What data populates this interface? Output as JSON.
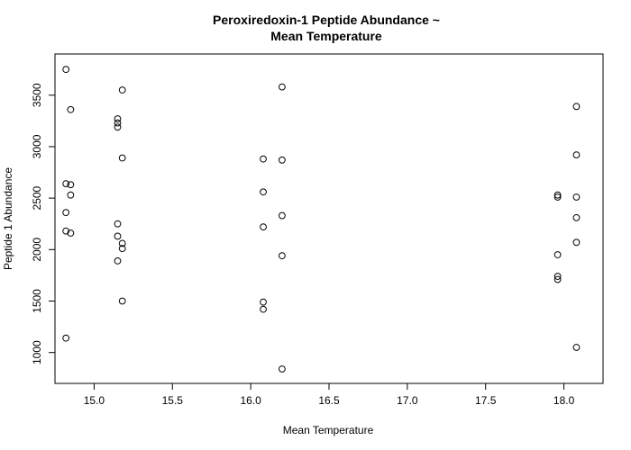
{
  "chart_data": {
    "type": "scatter",
    "title_line1": "Peroxiredoxin-1 Peptide Abundance ~",
    "title_line2": "Mean Temperature",
    "xlabel": "Mean Temperature",
    "ylabel": "Peptide 1 Abundance",
    "xlim": [
      14.75,
      18.25
    ],
    "ylim": [
      700,
      3900
    ],
    "x_ticks": [
      15.0,
      15.5,
      16.0,
      16.5,
      17.0,
      17.5,
      18.0
    ],
    "x_tick_labels": [
      "15.0",
      "15.5",
      "16.0",
      "16.5",
      "17.0",
      "17.5",
      "18.0"
    ],
    "y_ticks": [
      1000,
      1500,
      2000,
      2500,
      3000,
      3500
    ],
    "y_tick_labels": [
      "1000",
      "1500",
      "2000",
      "2500",
      "3000",
      "3500"
    ],
    "marker": "open-circle",
    "grid": false,
    "points": [
      {
        "x": 14.82,
        "y": 3750
      },
      {
        "x": 14.82,
        "y": 2640
      },
      {
        "x": 14.82,
        "y": 2360
      },
      {
        "x": 14.82,
        "y": 2180
      },
      {
        "x": 14.82,
        "y": 1140
      },
      {
        "x": 14.85,
        "y": 3360
      },
      {
        "x": 14.85,
        "y": 2630
      },
      {
        "x": 14.85,
        "y": 2530
      },
      {
        "x": 14.85,
        "y": 2160
      },
      {
        "x": 15.15,
        "y": 3270
      },
      {
        "x": 15.15,
        "y": 3230
      },
      {
        "x": 15.15,
        "y": 3190
      },
      {
        "x": 15.15,
        "y": 2250
      },
      {
        "x": 15.15,
        "y": 2130
      },
      {
        "x": 15.15,
        "y": 1890
      },
      {
        "x": 15.18,
        "y": 3550
      },
      {
        "x": 15.18,
        "y": 2890
      },
      {
        "x": 15.18,
        "y": 2060
      },
      {
        "x": 15.18,
        "y": 2010
      },
      {
        "x": 15.18,
        "y": 1500
      },
      {
        "x": 16.08,
        "y": 2880
      },
      {
        "x": 16.08,
        "y": 2560
      },
      {
        "x": 16.08,
        "y": 2220
      },
      {
        "x": 16.08,
        "y": 1490
      },
      {
        "x": 16.08,
        "y": 1420
      },
      {
        "x": 16.2,
        "y": 3580
      },
      {
        "x": 16.2,
        "y": 2870
      },
      {
        "x": 16.2,
        "y": 2330
      },
      {
        "x": 16.2,
        "y": 1940
      },
      {
        "x": 16.2,
        "y": 840
      },
      {
        "x": 17.96,
        "y": 2530
      },
      {
        "x": 17.96,
        "y": 2510
      },
      {
        "x": 17.96,
        "y": 1950
      },
      {
        "x": 17.96,
        "y": 1740
      },
      {
        "x": 17.96,
        "y": 1710
      },
      {
        "x": 18.08,
        "y": 3390
      },
      {
        "x": 18.08,
        "y": 2920
      },
      {
        "x": 18.08,
        "y": 2510
      },
      {
        "x": 18.08,
        "y": 2310
      },
      {
        "x": 18.08,
        "y": 2070
      },
      {
        "x": 18.08,
        "y": 1050
      }
    ]
  }
}
